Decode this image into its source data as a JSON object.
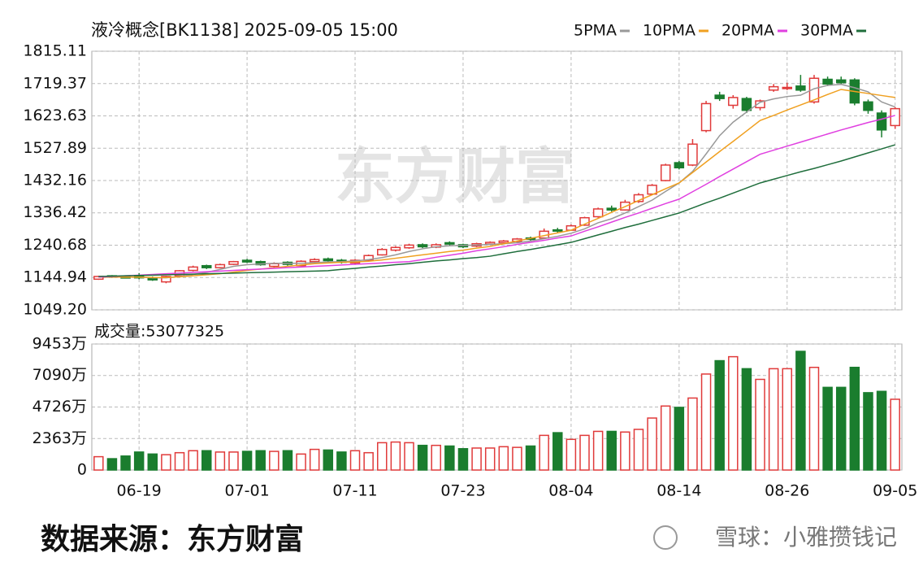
{
  "chart_data": [
    {
      "type": "candlestick",
      "title": "液冷概念[BK1138] 2025-09-05 15:00",
      "up_color": "#e03a3a",
      "down_color": "#1a7d2e",
      "grid": true,
      "open": [
        1140,
        1150,
        1147,
        1150,
        1145,
        1132,
        1150,
        1166,
        1180,
        1174,
        1184,
        1196,
        1192,
        1178,
        1190,
        1180,
        1192,
        1200,
        1196,
        1188,
        1196,
        1212,
        1226,
        1233,
        1242,
        1235,
        1248,
        1242,
        1238,
        1244,
        1248,
        1252,
        1262,
        1262,
        1286,
        1285,
        1300,
        1325,
        1350,
        1345,
        1370,
        1392,
        1432,
        1485,
        1478,
        1580,
        1685,
        1655,
        1675,
        1648,
        1700,
        1705,
        1712,
        1665,
        1732,
        1730,
        1730,
        1665,
        1632,
        1595
      ],
      "high": [
        1150,
        1152,
        1150,
        1158,
        1148,
        1150,
        1167,
        1180,
        1183,
        1186,
        1194,
        1200,
        1195,
        1190,
        1193,
        1196,
        1202,
        1204,
        1200,
        1199,
        1213,
        1232,
        1238,
        1245,
        1246,
        1246,
        1252,
        1245,
        1248,
        1252,
        1256,
        1262,
        1266,
        1290,
        1292,
        1302,
        1325,
        1352,
        1358,
        1375,
        1395,
        1422,
        1482,
        1490,
        1555,
        1668,
        1695,
        1685,
        1680,
        1672,
        1718,
        1722,
        1745,
        1745,
        1740,
        1740,
        1735,
        1672,
        1640,
        1650
      ],
      "low": [
        1138,
        1144,
        1142,
        1140,
        1135,
        1128,
        1148,
        1163,
        1170,
        1172,
        1182,
        1188,
        1180,
        1175,
        1180,
        1178,
        1189,
        1190,
        1186,
        1185,
        1194,
        1210,
        1222,
        1230,
        1232,
        1232,
        1240,
        1232,
        1235,
        1242,
        1245,
        1249,
        1254,
        1260,
        1278,
        1283,
        1298,
        1322,
        1340,
        1343,
        1366,
        1390,
        1430,
        1465,
        1475,
        1575,
        1668,
        1645,
        1632,
        1640,
        1695,
        1700,
        1695,
        1660,
        1712,
        1716,
        1655,
        1630,
        1560,
        1585
      ],
      "close": [
        1148,
        1146,
        1145,
        1144,
        1138,
        1148,
        1165,
        1176,
        1174,
        1183,
        1192,
        1191,
        1183,
        1186,
        1184,
        1193,
        1198,
        1195,
        1190,
        1196,
        1210,
        1228,
        1234,
        1241,
        1236,
        1242,
        1244,
        1236,
        1245,
        1249,
        1253,
        1259,
        1258,
        1282,
        1283,
        1298,
        1322,
        1348,
        1345,
        1368,
        1390,
        1418,
        1478,
        1470,
        1540,
        1660,
        1675,
        1678,
        1640,
        1668,
        1710,
        1708,
        1700,
        1735,
        1718,
        1722,
        1662,
        1640,
        1582,
        1645
      ],
      "series": [
        {
          "name": "5PMA",
          "color": "#999999",
          "values": [
            1146,
            1146,
            1146,
            1146,
            1144,
            1144,
            1148,
            1154,
            1160,
            1169,
            1178,
            1183,
            1185,
            1187,
            1187,
            1187,
            1189,
            1191,
            1192,
            1194,
            1198,
            1204,
            1212,
            1222,
            1230,
            1236,
            1239,
            1240,
            1241,
            1243,
            1245,
            1248,
            1253,
            1260,
            1267,
            1276,
            1289,
            1307,
            1319,
            1336,
            1355,
            1374,
            1400,
            1425,
            1459,
            1511,
            1565,
            1605,
            1635,
            1664,
            1674,
            1681,
            1685,
            1704,
            1714,
            1717,
            1707,
            1695,
            1665,
            1650
          ]
        },
        {
          "name": "10PMA",
          "color": "#f0a020",
          "values": [
            1146,
            1146,
            1146,
            1146,
            1145,
            1145,
            1147,
            1150,
            1153,
            1156,
            1161,
            1166,
            1170,
            1174,
            1178,
            1182,
            1186,
            1188,
            1190,
            1191,
            1193,
            1197,
            1202,
            1207,
            1212,
            1217,
            1222,
            1226,
            1232,
            1237,
            1245,
            1253,
            1261,
            1269,
            1277,
            1285,
            1303,
            1320,
            1338,
            1355,
            1373,
            1390,
            1408,
            1425,
            1456,
            1487,
            1518,
            1548,
            1579,
            1610,
            1625,
            1641,
            1656,
            1671,
            1687,
            1702,
            1696,
            1690,
            1684,
            1678
          ]
        },
        {
          "name": "20PMA",
          "color": "#e040e0",
          "values": [
            1146,
            1148,
            1150,
            1152,
            1154,
            1156,
            1158,
            1160,
            1162,
            1164,
            1166,
            1168,
            1170,
            1172,
            1174,
            1176,
            1178,
            1180,
            1182,
            1184,
            1186,
            1188,
            1190,
            1192,
            1198,
            1205,
            1211,
            1217,
            1224,
            1230,
            1236,
            1243,
            1249,
            1255,
            1262,
            1268,
            1282,
            1295,
            1309,
            1323,
            1336,
            1350,
            1364,
            1377,
            1399,
            1421,
            1444,
            1466,
            1488,
            1510,
            1522,
            1534,
            1546,
            1558,
            1570,
            1582,
            1593,
            1604,
            1614,
            1625
          ]
        },
        {
          "name": "30PMA",
          "color": "#1f6e3c",
          "values": [
            1148,
            1149,
            1150,
            1151,
            1152,
            1153,
            1154,
            1155,
            1156,
            1157,
            1158,
            1159,
            1160,
            1161,
            1162,
            1163,
            1164,
            1165,
            1169,
            1172,
            1176,
            1179,
            1183,
            1186,
            1190,
            1194,
            1197,
            1201,
            1204,
            1208,
            1215,
            1222,
            1228,
            1235,
            1242,
            1249,
            1260,
            1271,
            1282,
            1293,
            1303,
            1314,
            1325,
            1336,
            1351,
            1366,
            1380,
            1395,
            1410,
            1425,
            1436,
            1447,
            1458,
            1468,
            1479,
            1490,
            1502,
            1514,
            1526,
            1538
          ]
        }
      ],
      "ylim": [
        1049.2,
        1815.11
      ],
      "yticks": [
        1815.11,
        1719.37,
        1623.63,
        1527.89,
        1432.16,
        1336.42,
        1240.68,
        1144.94,
        {
          "value": 1049.2,
          "label": "1049.20"
        }
      ]
    },
    {
      "type": "bar",
      "title": "成交量:53077325",
      "grid": true,
      "categories": [
        null,
        null,
        null,
        "06-19",
        null,
        null,
        null,
        null,
        null,
        null,
        null,
        "07-01",
        null,
        null,
        null,
        null,
        null,
        null,
        null,
        "07-11",
        null,
        null,
        null,
        null,
        null,
        null,
        null,
        "07-23",
        null,
        null,
        null,
        null,
        null,
        null,
        null,
        "08-04",
        null,
        null,
        null,
        null,
        null,
        null,
        null,
        "08-14",
        null,
        null,
        null,
        null,
        null,
        null,
        null,
        "08-26",
        null,
        null,
        null,
        null,
        null,
        null,
        null,
        "09-05"
      ],
      "values": [
        10000000,
        8500000,
        10500000,
        13500000,
        12000000,
        11500000,
        13000000,
        14500000,
        14500000,
        13500000,
        13500000,
        14000000,
        14500000,
        14000000,
        14500000,
        12000000,
        15500000,
        15000000,
        13500000,
        14500000,
        13000000,
        20500000,
        21000000,
        20500000,
        18500000,
        18500000,
        18000000,
        16000000,
        16500000,
        16500000,
        17500000,
        17000000,
        18000000,
        26000000,
        28000000,
        23000000,
        26000000,
        29000000,
        29000000,
        28500000,
        30500000,
        39000000,
        48000000,
        47000000,
        54000000,
        72000000,
        82000000,
        85000000,
        76000000,
        68000000,
        76000000,
        76000000,
        89000000,
        77000000,
        62000000,
        62000000,
        77000000,
        58000000,
        59000000,
        53077325
      ],
      "ylim": [
        0,
        94530000
      ],
      "yticks": [
        {
          "value": 94530000,
          "label": "9453万"
        },
        {
          "value": 70900000,
          "label": "7090万"
        },
        {
          "value": 47260000,
          "label": "4726万"
        },
        {
          "value": 23630000,
          "label": "2363万"
        },
        0
      ]
    }
  ],
  "watermark": "东方财富",
  "source": "数据来源：东方财富",
  "credit": "雪球：小雅攒钱记"
}
